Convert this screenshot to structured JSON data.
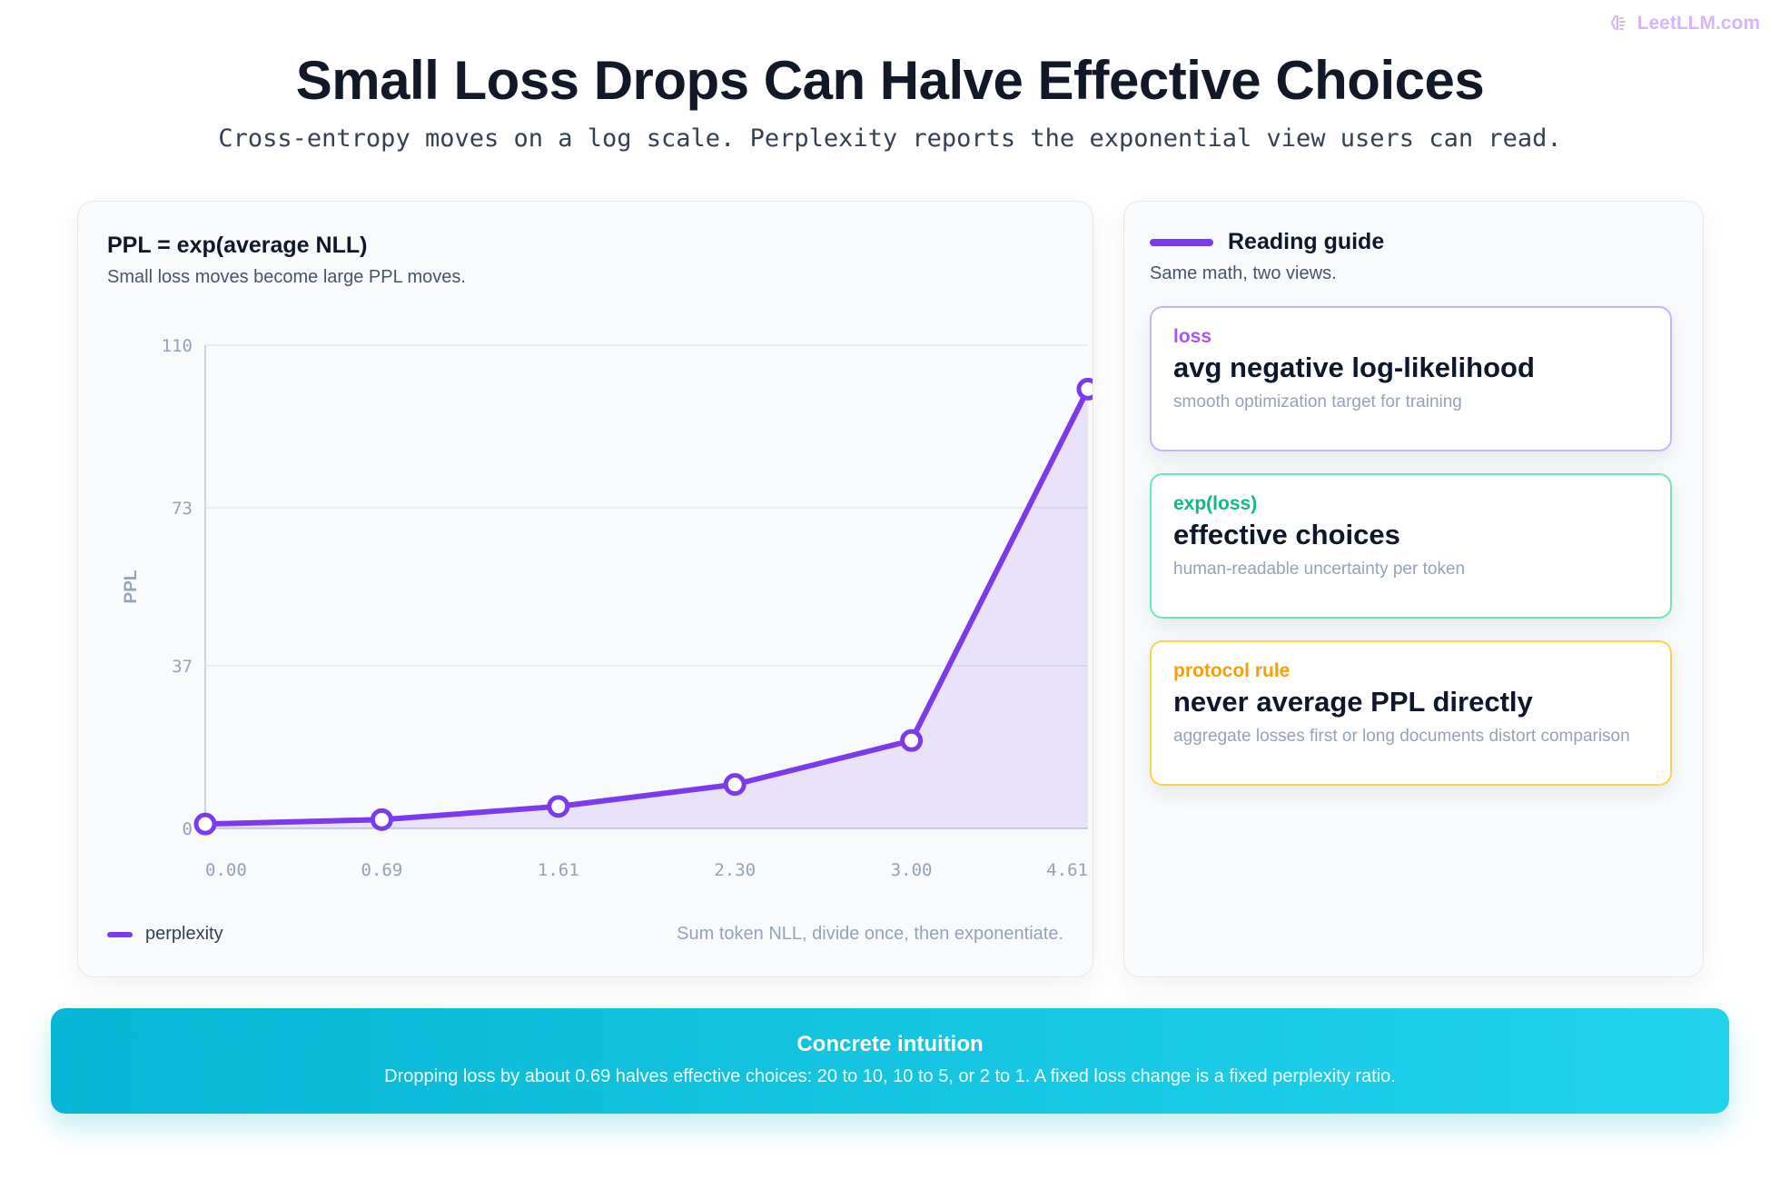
{
  "brand": {
    "name": "LeetLLM.com",
    "icon": "brain-icon"
  },
  "header": {
    "title": "Small Loss Drops Can Halve Effective Choices",
    "subtitle": "Cross-entropy moves on a log scale. Perplexity reports the exponential view users can read."
  },
  "chart_panel": {
    "title": "PPL = exp(average NLL)",
    "subtitle": "Small loss moves become large PPL moves.",
    "legend_label": "perplexity",
    "note": "Sum token NLL, divide once, then exponentiate."
  },
  "chart_data": {
    "type": "line",
    "title": "PPL = exp(average NLL)",
    "xlabel": "",
    "ylabel": "PPL",
    "x_tick_labels": [
      "0.00",
      "0.69",
      "1.61",
      "2.30",
      "3.00",
      "4.61"
    ],
    "y_tick_labels": [
      "0",
      "37",
      "73",
      "110"
    ],
    "ylim": [
      0,
      110
    ],
    "grid": true,
    "legend_position": "bottom-left",
    "series": [
      {
        "name": "perplexity",
        "color": "#7c3aed",
        "x": [
          0.0,
          0.69,
          1.61,
          2.3,
          3.0,
          4.61
        ],
        "values": [
          1,
          2,
          5,
          10,
          20,
          100
        ]
      }
    ]
  },
  "guide": {
    "title": "Reading guide",
    "subtitle": "Same math, two views.",
    "items": [
      {
        "tag": "loss",
        "heading": "avg negative log-likelihood",
        "desc": "smooth optimization target for training",
        "color": "#a855f7",
        "border": "#c4b5fd"
      },
      {
        "tag": "exp(loss)",
        "heading": "effective choices",
        "desc": "human-readable uncertainty per token",
        "color": "#10b981",
        "border": "#6ee7b7"
      },
      {
        "tag": "protocol rule",
        "heading": "never average PPL directly",
        "desc": "aggregate losses first or long documents distort comparison",
        "color": "#f59e0b",
        "border": "#fcd34d"
      }
    ]
  },
  "banner": {
    "title": "Concrete intuition",
    "text": "Dropping loss by about 0.69 halves effective choices: 20 to 10, 10 to 5, or 2 to 1. A fixed loss change is a fixed perplexity ratio."
  }
}
